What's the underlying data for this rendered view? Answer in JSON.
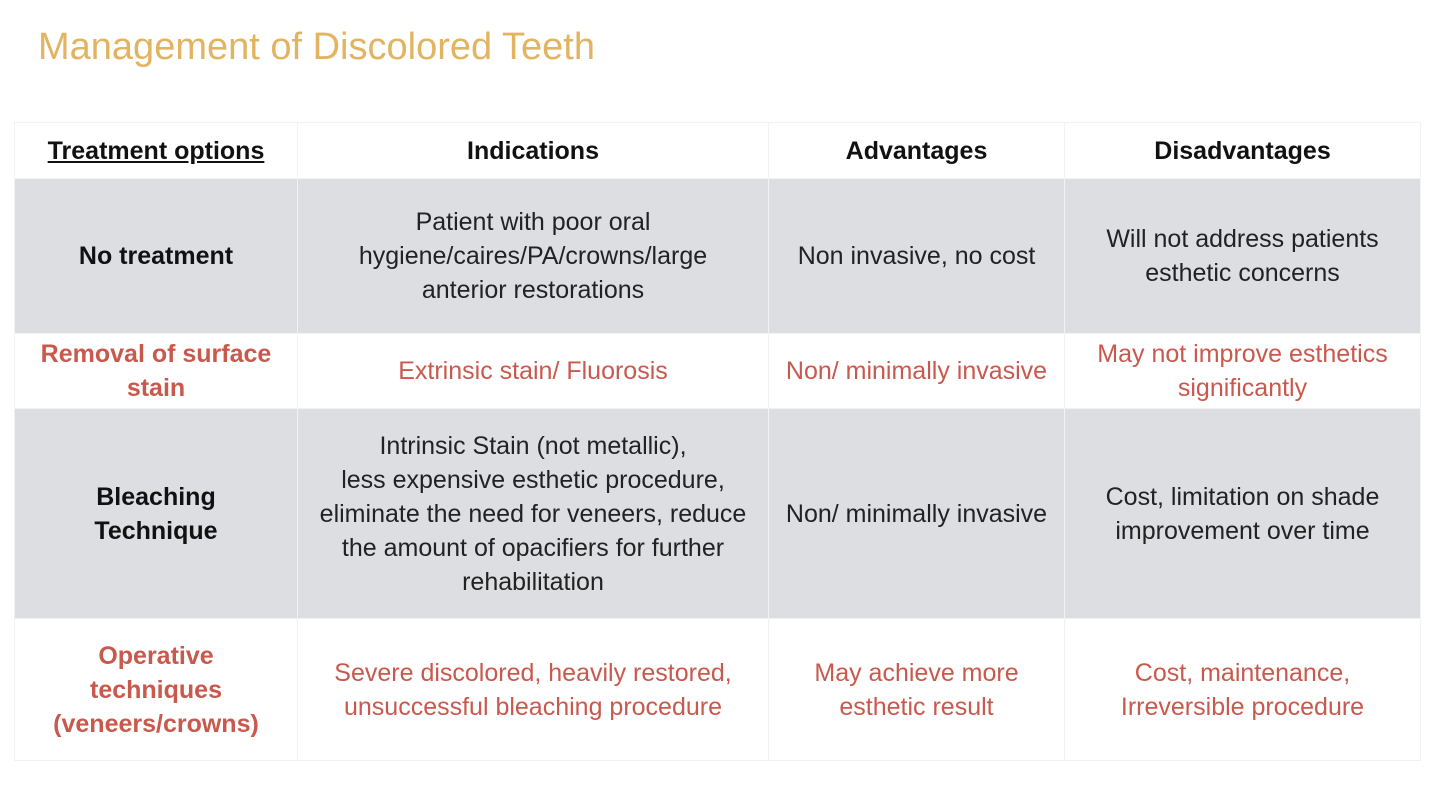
{
  "title": "Management of Discolored Teeth",
  "table": {
    "header": [
      "Treatment options",
      "Indications",
      "Advantages",
      "Disadvantages"
    ],
    "rows": [
      [
        "No treatment",
        "Patient with poor oral\nhygiene/caires/PA/crowns/large\nanterior restorations",
        "Non invasive, no cost",
        "Will not address patients\nesthetic concerns"
      ],
      [
        "Removal of surface\nstain",
        "Extrinsic stain/ Fluorosis",
        "Non/ minimally invasive",
        "May not improve esthetics\nsignificantly"
      ],
      [
        "Bleaching\nTechnique",
        "Intrinsic Stain (not metallic),\nless expensive esthetic procedure,\neliminate the need for veneers, reduce\nthe amount of opacifiers for further\nrehabilitation",
        "Non/ minimally invasive",
        "Cost, limitation on shade\nimprovement over time"
      ],
      [
        "Operative\ntechniques\n(veneers/crowns)",
        "Severe discolored, heavily restored,\nunsuccessful bleaching procedure",
        "May achieve more\nesthetic result",
        "Cost, maintenance,\nIrreversible procedure"
      ]
    ]
  }
}
